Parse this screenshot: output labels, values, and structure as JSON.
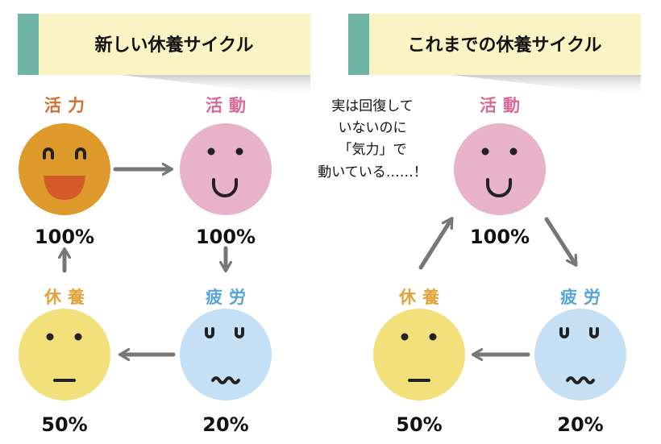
{
  "left": {
    "title": "新しい休養サイクル",
    "nodes": {
      "vitality": {
        "label": "活力",
        "percent": "100%",
        "color": "#de9a2a",
        "label_color": "#d4702c"
      },
      "activity": {
        "label": "活動",
        "percent": "100%",
        "color": "#e8b3c9",
        "label_color": "#d96a98"
      },
      "fatigue": {
        "label": "疲労",
        "percent": "20%",
        "color": "#c5dff5",
        "label_color": "#5aa5d8"
      },
      "rest": {
        "label": "休養",
        "percent": "50%",
        "color": "#f4e07a",
        "label_color": "#e2a33a"
      }
    }
  },
  "right": {
    "title": "これまでの休養サイクル",
    "note": [
      "実は回復して",
      "いないのに",
      "「気力」で",
      "動いている……！"
    ],
    "nodes": {
      "activity": {
        "label": "活動",
        "percent": "100%"
      },
      "fatigue": {
        "label": "疲労",
        "percent": "20%"
      },
      "rest": {
        "label": "休養",
        "percent": "50%"
      }
    }
  },
  "colors": {
    "header_bg": "#faf3c3",
    "header_accent": "#6fb5a6",
    "arrow": "#777777"
  }
}
